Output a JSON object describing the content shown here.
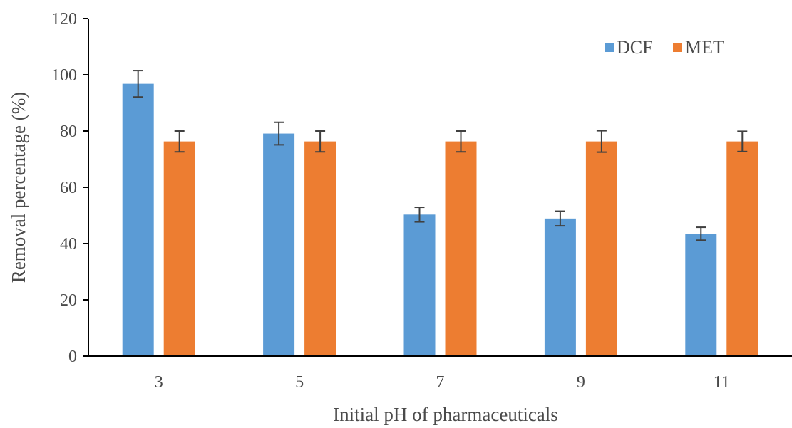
{
  "chart_data": {
    "type": "bar",
    "title": "",
    "xlabel": "Initial pH of pharmaceuticals",
    "ylabel": "Removal percentage (%)",
    "categories": [
      "3",
      "5",
      "7",
      "9",
      "11"
    ],
    "ylim": [
      0,
      120
    ],
    "yticks": [
      0,
      20,
      40,
      60,
      80,
      100,
      120
    ],
    "grid": false,
    "legend_position": "top-right",
    "series": [
      {
        "name": "DCF",
        "color": "#5b9bd5",
        "values": [
          96.8,
          79.1,
          50.3,
          48.9,
          43.5
        ],
        "errors": [
          4.7,
          4.0,
          2.6,
          2.6,
          2.3
        ]
      },
      {
        "name": "MET",
        "color": "#ed7d31",
        "values": [
          76.3,
          76.3,
          76.3,
          76.3,
          76.3
        ],
        "errors": [
          3.7,
          3.7,
          3.7,
          3.8,
          3.6
        ]
      }
    ],
    "error_bar_color": "#404040"
  }
}
